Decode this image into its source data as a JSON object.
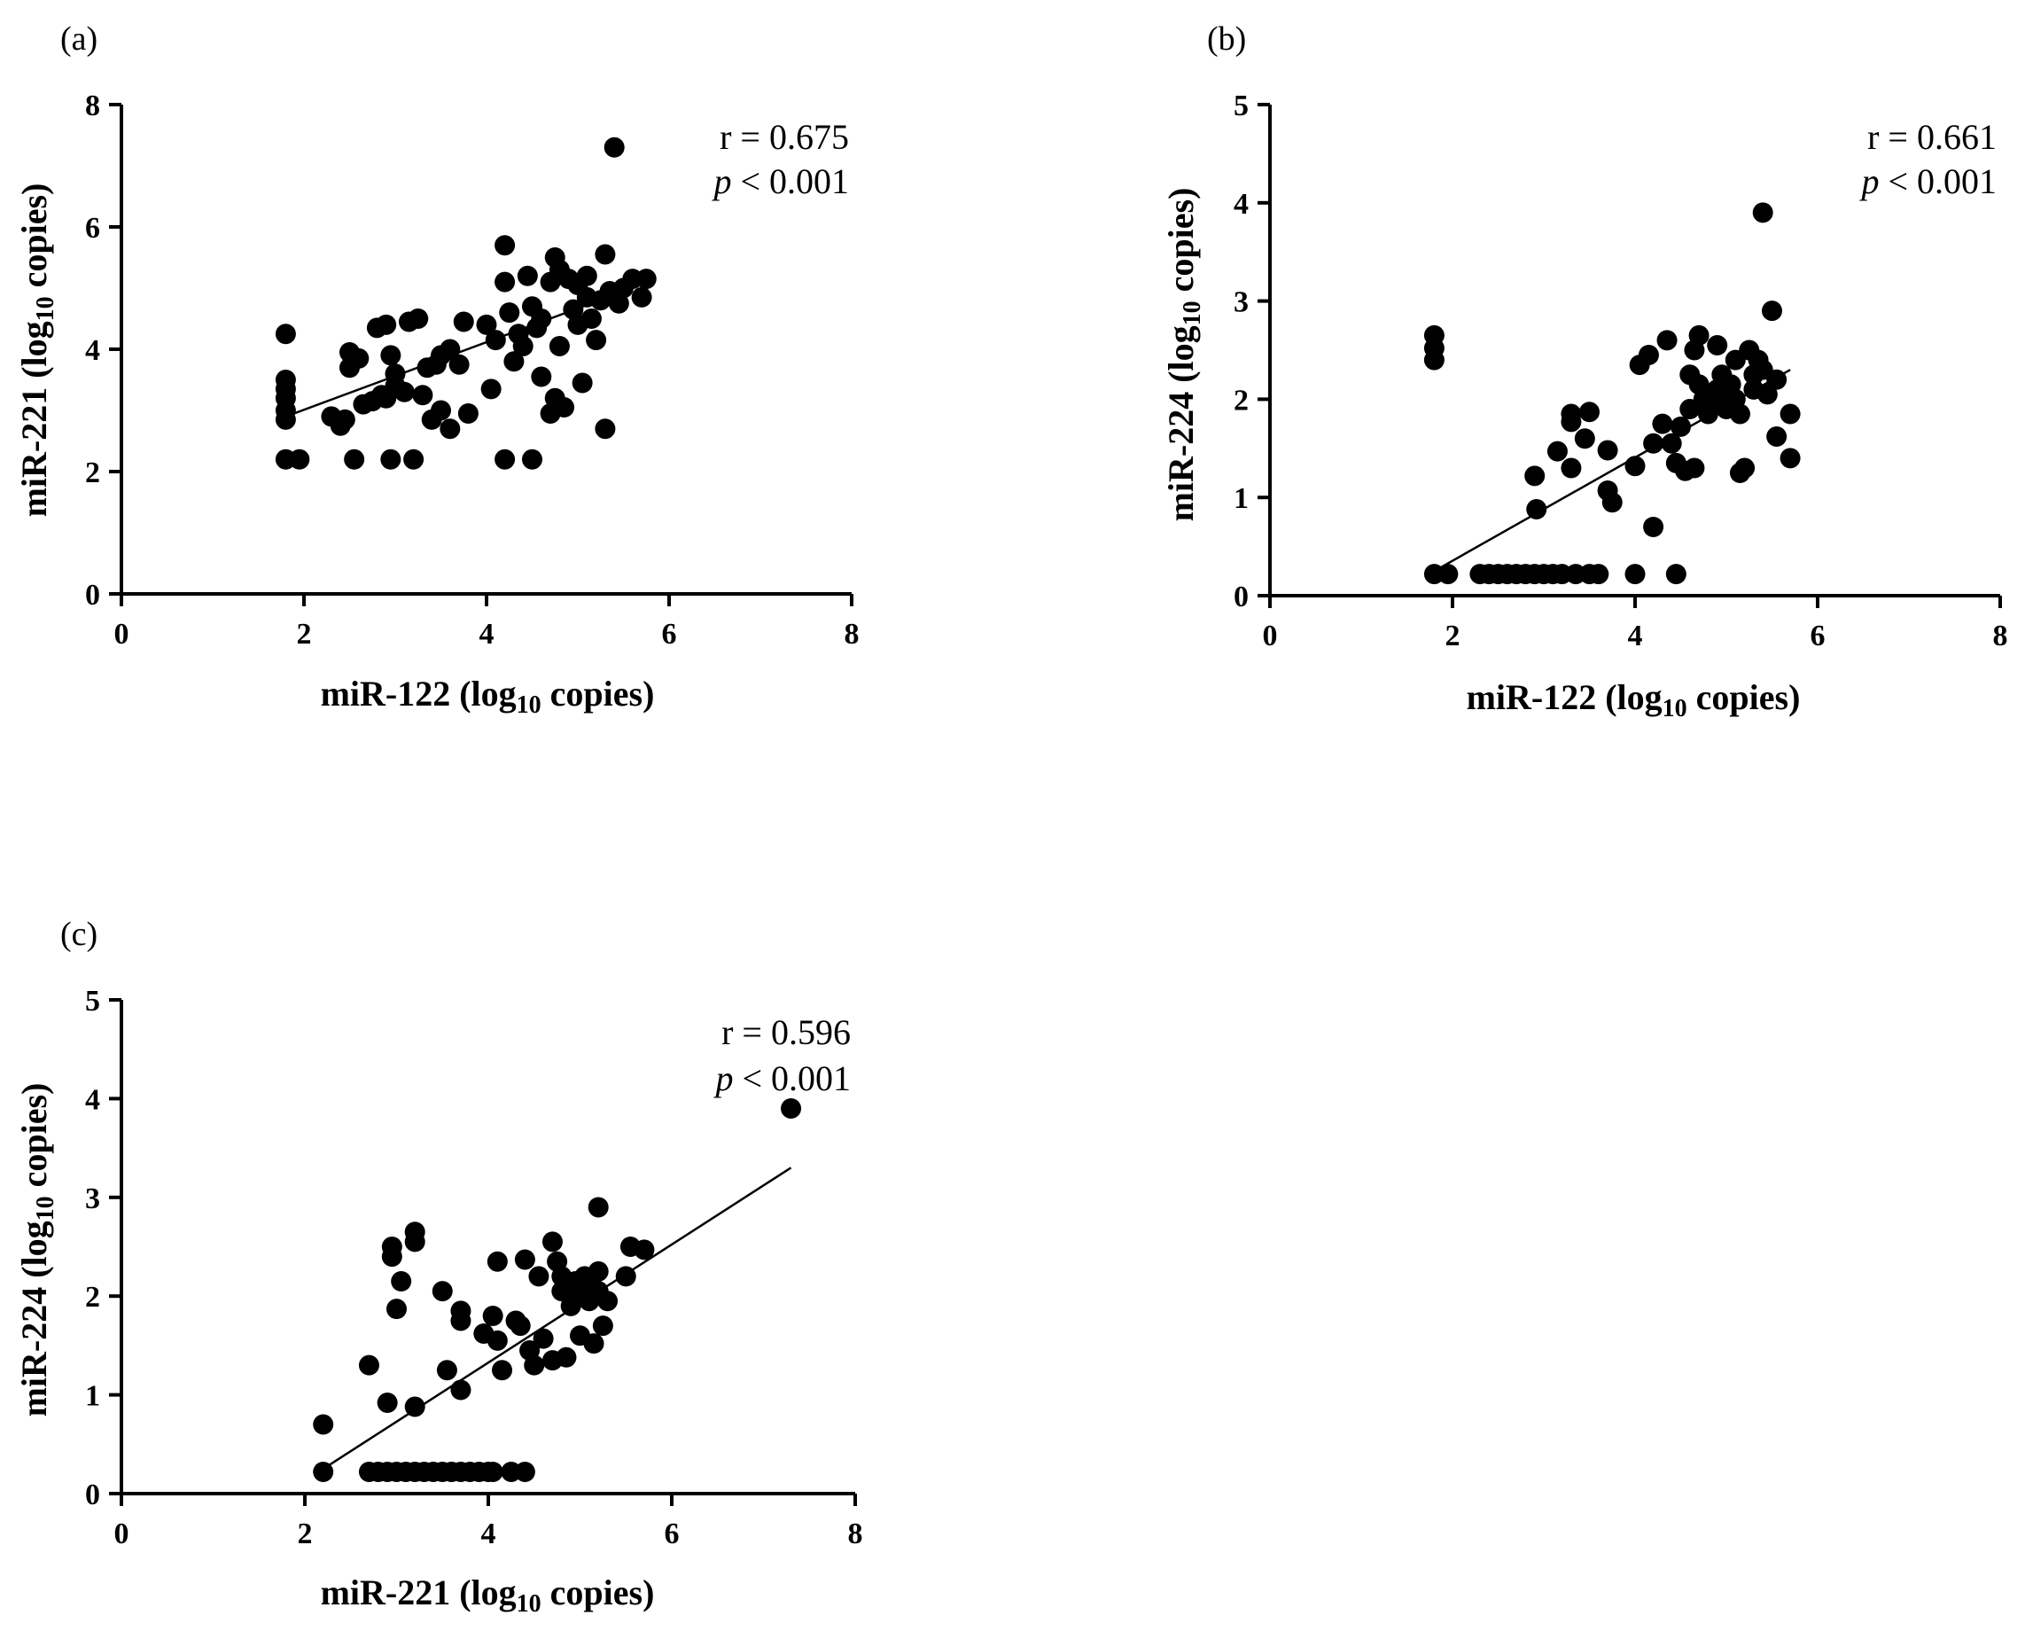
{
  "chart_data": [
    {
      "panel": "(a)",
      "type": "scatter",
      "xlabel": "miR-122 (log10 copies)",
      "xlabel_parts": {
        "main": "miR-122 (log",
        "sub": "10",
        "tail": " copies)"
      },
      "ylabel": "miR-221 (log10 copies)",
      "ylabel_parts": {
        "main": "miR-221 (log",
        "sub": "10",
        "tail": " copies)"
      },
      "xlim": [
        0,
        8
      ],
      "ylim": [
        0,
        8
      ],
      "xticks": [
        0,
        2,
        4,
        6,
        8
      ],
      "yticks": [
        0,
        2,
        4,
        6,
        8
      ],
      "stats": {
        "r_text": "r = 0.675",
        "p_symbol": "p",
        "p_text": " < 0.001"
      },
      "fit_line": [
        [
          1.8,
          2.9
        ],
        [
          5.6,
          5.0
        ]
      ],
      "points": [
        [
          1.8,
          4.25
        ],
        [
          1.8,
          3.5
        ],
        [
          1.8,
          3.35
        ],
        [
          1.8,
          3.2
        ],
        [
          1.8,
          3.0
        ],
        [
          1.8,
          2.85
        ],
        [
          1.8,
          2.2
        ],
        [
          1.95,
          2.2
        ],
        [
          2.3,
          2.9
        ],
        [
          2.4,
          2.75
        ],
        [
          2.45,
          2.85
        ],
        [
          2.5,
          3.95
        ],
        [
          2.5,
          3.7
        ],
        [
          2.55,
          2.2
        ],
        [
          2.6,
          3.85
        ],
        [
          2.65,
          3.1
        ],
        [
          2.75,
          3.15
        ],
        [
          2.8,
          4.35
        ],
        [
          2.85,
          3.25
        ],
        [
          2.9,
          4.4
        ],
        [
          2.9,
          3.2
        ],
        [
          2.95,
          3.9
        ],
        [
          2.95,
          2.2
        ],
        [
          3.0,
          3.6
        ],
        [
          3.0,
          3.4
        ],
        [
          3.1,
          3.3
        ],
        [
          3.15,
          4.45
        ],
        [
          3.2,
          2.2
        ],
        [
          3.25,
          4.5
        ],
        [
          3.3,
          3.25
        ],
        [
          3.35,
          3.7
        ],
        [
          3.4,
          2.85
        ],
        [
          3.45,
          3.75
        ],
        [
          3.5,
          3.0
        ],
        [
          3.5,
          3.9
        ],
        [
          3.6,
          2.7
        ],
        [
          3.6,
          4.0
        ],
        [
          3.7,
          3.75
        ],
        [
          3.75,
          4.45
        ],
        [
          3.8,
          2.95
        ],
        [
          4.0,
          4.4
        ],
        [
          4.05,
          3.35
        ],
        [
          4.1,
          4.15
        ],
        [
          4.2,
          5.7
        ],
        [
          4.2,
          5.1
        ],
        [
          4.2,
          2.2
        ],
        [
          4.25,
          4.6
        ],
        [
          4.3,
          3.8
        ],
        [
          4.35,
          4.25
        ],
        [
          4.4,
          4.05
        ],
        [
          4.45,
          5.2
        ],
        [
          4.5,
          4.7
        ],
        [
          4.5,
          2.2
        ],
        [
          4.55,
          4.35
        ],
        [
          4.6,
          3.55
        ],
        [
          4.6,
          4.5
        ],
        [
          4.7,
          5.1
        ],
        [
          4.7,
          2.95
        ],
        [
          4.75,
          5.5
        ],
        [
          4.75,
          3.2
        ],
        [
          4.8,
          5.3
        ],
        [
          4.8,
          4.05
        ],
        [
          4.85,
          3.05
        ],
        [
          4.9,
          5.15
        ],
        [
          4.95,
          4.65
        ],
        [
          5.0,
          5.05
        ],
        [
          5.0,
          4.4
        ],
        [
          5.05,
          3.45
        ],
        [
          5.1,
          5.2
        ],
        [
          5.1,
          4.85
        ],
        [
          5.15,
          4.5
        ],
        [
          5.2,
          4.15
        ],
        [
          5.25,
          4.8
        ],
        [
          5.3,
          5.55
        ],
        [
          5.3,
          2.7
        ],
        [
          5.35,
          4.95
        ],
        [
          5.4,
          7.3
        ],
        [
          5.45,
          4.75
        ],
        [
          5.5,
          5.0
        ],
        [
          5.6,
          5.15
        ],
        [
          5.7,
          4.85
        ],
        [
          5.75,
          5.15
        ]
      ]
    },
    {
      "panel": "(b)",
      "type": "scatter",
      "xlabel": "miR-122 (log10 copies)",
      "xlabel_parts": {
        "main": "miR-122 (log",
        "sub": "10",
        "tail": " copies)"
      },
      "ylabel": "miR-224 (log10 copies)",
      "ylabel_parts": {
        "main": "miR-224 (log",
        "sub": "10",
        "tail": " copies)"
      },
      "xlim": [
        0,
        8
      ],
      "ylim": [
        0,
        5
      ],
      "xticks": [
        0,
        2,
        4,
        6,
        8
      ],
      "yticks": [
        0,
        1,
        2,
        3,
        4,
        5
      ],
      "stats": {
        "r_text": "r = 0.661",
        "p_symbol": "p",
        "p_text": " < 0.001"
      },
      "fit_line": [
        [
          1.8,
          0.25
        ],
        [
          5.7,
          2.3
        ]
      ],
      "points": [
        [
          1.8,
          2.65
        ],
        [
          1.8,
          2.52
        ],
        [
          1.8,
          2.4
        ],
        [
          1.8,
          0.22
        ],
        [
          1.95,
          0.22
        ],
        [
          2.3,
          0.22
        ],
        [
          2.4,
          0.22
        ],
        [
          2.5,
          0.22
        ],
        [
          2.6,
          0.22
        ],
        [
          2.7,
          0.22
        ],
        [
          2.8,
          0.22
        ],
        [
          2.9,
          0.22
        ],
        [
          3.0,
          0.22
        ],
        [
          3.1,
          0.22
        ],
        [
          3.2,
          0.22
        ],
        [
          3.35,
          0.22
        ],
        [
          3.5,
          0.22
        ],
        [
          3.6,
          0.22
        ],
        [
          2.9,
          1.22
        ],
        [
          2.92,
          0.88
        ],
        [
          3.15,
          1.47
        ],
        [
          3.3,
          1.85
        ],
        [
          3.3,
          1.77
        ],
        [
          3.3,
          1.3
        ],
        [
          3.45,
          1.6
        ],
        [
          3.5,
          1.87
        ],
        [
          3.7,
          1.48
        ],
        [
          3.7,
          1.07
        ],
        [
          3.75,
          0.95
        ],
        [
          4.0,
          1.32
        ],
        [
          4.0,
          0.22
        ],
        [
          4.05,
          2.35
        ],
        [
          4.15,
          2.45
        ],
        [
          4.2,
          1.55
        ],
        [
          4.2,
          0.7
        ],
        [
          4.3,
          1.75
        ],
        [
          4.35,
          2.6
        ],
        [
          4.4,
          1.55
        ],
        [
          4.45,
          0.22
        ],
        [
          4.45,
          1.35
        ],
        [
          4.5,
          1.72
        ],
        [
          4.55,
          1.27
        ],
        [
          4.6,
          2.25
        ],
        [
          4.6,
          1.9
        ],
        [
          4.65,
          2.5
        ],
        [
          4.65,
          1.3
        ],
        [
          4.7,
          2.65
        ],
        [
          4.7,
          2.15
        ],
        [
          4.75,
          2.0
        ],
        [
          4.8,
          1.85
        ],
        [
          4.85,
          1.95
        ],
        [
          4.9,
          2.55
        ],
        [
          4.9,
          2.1
        ],
        [
          4.95,
          2.25
        ],
        [
          5.0,
          2.05
        ],
        [
          5.0,
          1.9
        ],
        [
          5.05,
          2.15
        ],
        [
          5.1,
          2.4
        ],
        [
          5.1,
          2.0
        ],
        [
          5.15,
          1.85
        ],
        [
          5.15,
          1.25
        ],
        [
          5.2,
          1.3
        ],
        [
          5.25,
          2.5
        ],
        [
          5.3,
          2.1
        ],
        [
          5.3,
          2.25
        ],
        [
          5.35,
          2.4
        ],
        [
          5.4,
          2.3
        ],
        [
          5.45,
          2.05
        ],
        [
          5.4,
          3.9
        ],
        [
          5.5,
          2.9
        ],
        [
          5.55,
          2.2
        ],
        [
          5.55,
          1.62
        ],
        [
          5.7,
          1.85
        ],
        [
          5.7,
          1.4
        ]
      ]
    },
    {
      "panel": "(c)",
      "type": "scatter",
      "xlabel": "miR-221 (log10 copies)",
      "xlabel_parts": {
        "main": "miR-221 (log",
        "sub": "10",
        "tail": " copies)"
      },
      "ylabel": "miR-224 (log10 copies)",
      "ylabel_parts": {
        "main": "miR-224 (log",
        "sub": "10",
        "tail": " copies)"
      },
      "xlim": [
        0,
        8
      ],
      "ylim": [
        0,
        5
      ],
      "xticks": [
        0,
        2,
        4,
        6,
        8
      ],
      "yticks": [
        0,
        1,
        2,
        3,
        4,
        5
      ],
      "stats": {
        "r_text": "r = 0.596",
        "p_symbol": "p",
        "p_text": " < 0.001"
      },
      "fit_line": [
        [
          2.2,
          0.25
        ],
        [
          7.3,
          3.3
        ]
      ],
      "points": [
        [
          2.2,
          0.7
        ],
        [
          2.2,
          0.22
        ],
        [
          2.7,
          0.22
        ],
        [
          2.8,
          0.22
        ],
        [
          2.9,
          0.22
        ],
        [
          3.0,
          0.22
        ],
        [
          3.1,
          0.22
        ],
        [
          3.2,
          0.22
        ],
        [
          3.3,
          0.22
        ],
        [
          3.4,
          0.22
        ],
        [
          3.5,
          0.22
        ],
        [
          3.6,
          0.22
        ],
        [
          3.7,
          0.22
        ],
        [
          3.8,
          0.22
        ],
        [
          3.9,
          0.22
        ],
        [
          4.0,
          0.22
        ],
        [
          4.05,
          0.22
        ],
        [
          4.25,
          0.22
        ],
        [
          4.4,
          0.22
        ],
        [
          2.7,
          1.3
        ],
        [
          2.9,
          0.92
        ],
        [
          2.95,
          2.5
        ],
        [
          2.95,
          2.4
        ],
        [
          3.0,
          1.87
        ],
        [
          3.05,
          2.15
        ],
        [
          3.2,
          2.65
        ],
        [
          3.2,
          2.55
        ],
        [
          3.2,
          0.88
        ],
        [
          3.5,
          2.05
        ],
        [
          3.55,
          1.25
        ],
        [
          3.7,
          1.85
        ],
        [
          3.7,
          1.75
        ],
        [
          3.7,
          1.05
        ],
        [
          3.95,
          1.62
        ],
        [
          4.05,
          1.8
        ],
        [
          4.1,
          1.55
        ],
        [
          4.1,
          2.35
        ],
        [
          4.15,
          1.25
        ],
        [
          4.3,
          1.75
        ],
        [
          4.35,
          1.7
        ],
        [
          4.4,
          2.37
        ],
        [
          4.45,
          1.45
        ],
        [
          4.5,
          1.3
        ],
        [
          4.55,
          2.2
        ],
        [
          4.6,
          1.57
        ],
        [
          4.7,
          2.55
        ],
        [
          4.7,
          1.35
        ],
        [
          4.75,
          2.35
        ],
        [
          4.8,
          2.2
        ],
        [
          4.8,
          2.05
        ],
        [
          4.85,
          1.38
        ],
        [
          4.9,
          1.9
        ],
        [
          4.95,
          2.15
        ],
        [
          5.0,
          2.0
        ],
        [
          5.0,
          1.6
        ],
        [
          5.05,
          2.2
        ],
        [
          5.1,
          1.95
        ],
        [
          5.1,
          2.1
        ],
        [
          5.15,
          1.52
        ],
        [
          5.2,
          2.25
        ],
        [
          5.2,
          2.9
        ],
        [
          5.2,
          2.05
        ],
        [
          5.25,
          1.7
        ],
        [
          5.3,
          1.95
        ],
        [
          5.5,
          2.2
        ],
        [
          5.55,
          2.5
        ],
        [
          5.7,
          2.47
        ],
        [
          7.3,
          3.9
        ]
      ]
    }
  ]
}
